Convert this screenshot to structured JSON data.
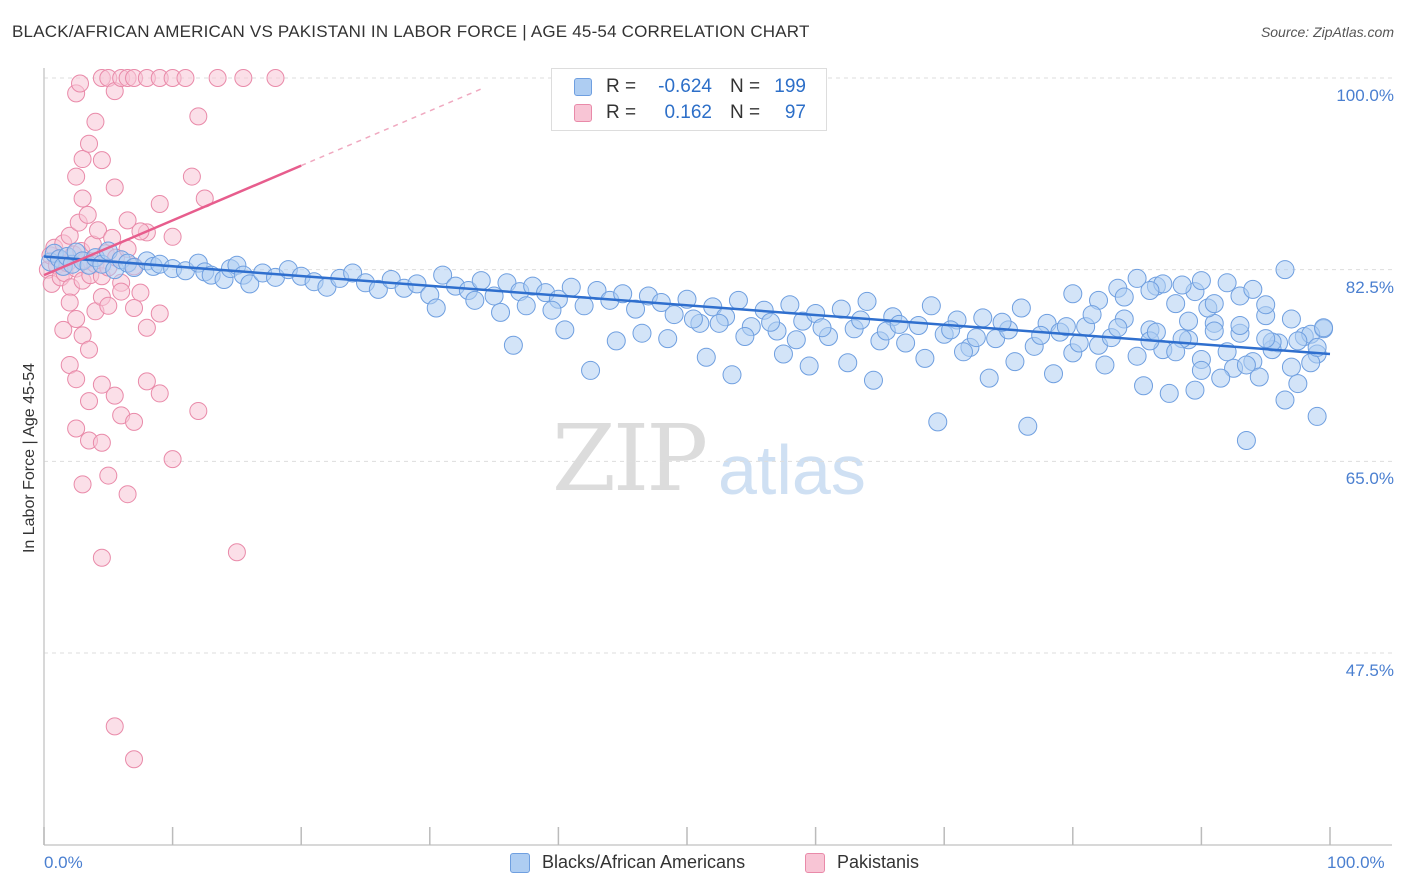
{
  "title": "BLACK/AFRICAN AMERICAN VS PAKISTANI IN LABOR FORCE | AGE 45-54 CORRELATION CHART",
  "source": "Source: ZipAtlas.com",
  "watermark": {
    "zip": "ZIP",
    "atlas": "atlas"
  },
  "legend": {
    "r_label": "R =",
    "n_label": "N =",
    "rows": [
      {
        "r": "-0.624",
        "n": "199",
        "fill": "#aecdf2",
        "stroke": "#6f9fe0"
      },
      {
        "r": "0.162",
        "n": "97",
        "fill": "#f8c5d5",
        "stroke": "#e98aa9"
      }
    ]
  },
  "colors": {
    "blue": "#2f6fce",
    "blue_fill": "#aecdf2",
    "pink": "#e75d8d",
    "pink_fill": "#f8c5d5",
    "grid": "#dddddd"
  },
  "chart_data": {
    "type": "scatter",
    "ylabel": "In Labor Force | Age 45-54",
    "xlim": [
      0,
      100
    ],
    "ylim": [
      32,
      102
    ],
    "x_ticks": [
      "0.0%",
      "100.0%"
    ],
    "y_ticks": [
      {
        "value": 100,
        "label": "100.0%"
      },
      {
        "value": 82.5,
        "label": "82.5%"
      },
      {
        "value": 65,
        "label": "65.0%"
      },
      {
        "value": 47.5,
        "label": "47.5%"
      }
    ],
    "grid": true,
    "legend_position": "bottom-center",
    "series": [
      {
        "name": "Blacks/African Americans",
        "trend": {
          "x0": 0,
          "y0": 83.7,
          "x1": 100,
          "y1": 74.8
        },
        "points": [
          [
            0.5,
            83.2
          ],
          [
            0.8,
            84.0
          ],
          [
            1.2,
            83.5
          ],
          [
            1.5,
            82.8
          ],
          [
            1.8,
            83.7
          ],
          [
            2.2,
            83.0
          ],
          [
            2.5,
            84.1
          ],
          [
            3.0,
            83.3
          ],
          [
            3.5,
            82.9
          ],
          [
            4.0,
            83.6
          ],
          [
            4.5,
            83.0
          ],
          [
            5.0,
            84.2
          ],
          [
            5.5,
            82.5
          ],
          [
            6.0,
            83.4
          ],
          [
            6.5,
            83.1
          ],
          [
            7.0,
            82.7
          ],
          [
            8.0,
            83.3
          ],
          [
            8.5,
            82.8
          ],
          [
            9.0,
            83.0
          ],
          [
            10.0,
            82.6
          ],
          [
            11.0,
            82.4
          ],
          [
            12.0,
            83.1
          ],
          [
            12.5,
            82.3
          ],
          [
            13.0,
            82.0
          ],
          [
            14.0,
            81.6
          ],
          [
            14.5,
            82.6
          ],
          [
            15.0,
            82.9
          ],
          [
            15.5,
            82.0
          ],
          [
            16.0,
            81.2
          ],
          [
            17.0,
            82.2
          ],
          [
            18.0,
            81.8
          ],
          [
            19.0,
            82.5
          ],
          [
            20.0,
            81.9
          ],
          [
            21.0,
            81.4
          ],
          [
            22.0,
            80.9
          ],
          [
            23.0,
            81.7
          ],
          [
            24.0,
            82.2
          ],
          [
            25.0,
            81.3
          ],
          [
            26.0,
            80.7
          ],
          [
            27.0,
            81.6
          ],
          [
            28.0,
            80.8
          ],
          [
            29.0,
            81.2
          ],
          [
            30.0,
            80.2
          ],
          [
            31.0,
            82.0
          ],
          [
            32.0,
            81.0
          ],
          [
            33.0,
            80.6
          ],
          [
            34.0,
            81.5
          ],
          [
            35.0,
            80.1
          ],
          [
            36.0,
            81.3
          ],
          [
            37.0,
            80.5
          ],
          [
            38.0,
            81.0
          ],
          [
            39.0,
            80.4
          ],
          [
            40.0,
            79.8
          ],
          [
            41.0,
            80.9
          ],
          [
            42.0,
            79.2
          ],
          [
            43.0,
            80.6
          ],
          [
            44.0,
            79.7
          ],
          [
            45.0,
            80.3
          ],
          [
            46.0,
            78.9
          ],
          [
            47.0,
            80.1
          ],
          [
            48.0,
            79.5
          ],
          [
            49.0,
            78.4
          ],
          [
            50.0,
            79.8
          ],
          [
            51.0,
            77.6
          ],
          [
            52.0,
            79.1
          ],
          [
            53.0,
            78.2
          ],
          [
            54.0,
            79.7
          ],
          [
            55.0,
            77.3
          ],
          [
            56.0,
            78.8
          ],
          [
            57.0,
            76.9
          ],
          [
            58.0,
            79.3
          ],
          [
            59.0,
            77.8
          ],
          [
            60.0,
            78.5
          ],
          [
            61.0,
            76.4
          ],
          [
            62.0,
            78.9
          ],
          [
            63.0,
            77.1
          ],
          [
            64.0,
            79.6
          ],
          [
            65.0,
            76.0
          ],
          [
            66.0,
            78.2
          ],
          [
            67.0,
            75.8
          ],
          [
            68.0,
            77.4
          ],
          [
            69.0,
            79.2
          ],
          [
            70.0,
            76.6
          ],
          [
            71.0,
            77.9
          ],
          [
            72.0,
            75.4
          ],
          [
            73.0,
            78.1
          ],
          [
            74.0,
            76.2
          ],
          [
            75.0,
            77.0
          ],
          [
            76.0,
            79.0
          ],
          [
            77.0,
            75.5
          ],
          [
            78.0,
            77.6
          ],
          [
            79.0,
            76.8
          ],
          [
            80.0,
            74.9
          ],
          [
            81.0,
            77.3
          ],
          [
            82.0,
            75.6
          ],
          [
            83.0,
            76.3
          ],
          [
            84.0,
            78.0
          ],
          [
            85.0,
            74.6
          ],
          [
            86.0,
            77.0
          ],
          [
            87.0,
            75.2
          ],
          [
            88.0,
            79.4
          ],
          [
            89.0,
            76.1
          ],
          [
            90.0,
            74.3
          ],
          [
            91.0,
            77.6
          ],
          [
            92.0,
            75.0
          ],
          [
            93.0,
            76.7
          ],
          [
            94.0,
            74.1
          ],
          [
            95.0,
            78.3
          ],
          [
            96.0,
            75.8
          ],
          [
            97.0,
            73.6
          ],
          [
            98.0,
            76.4
          ],
          [
            99.0,
            74.8
          ],
          [
            99.5,
            77.1
          ],
          [
            36.5,
            75.6
          ],
          [
            42.5,
            73.3
          ],
          [
            48.5,
            76.2
          ],
          [
            51.5,
            74.5
          ],
          [
            53.5,
            72.9
          ],
          [
            57.5,
            74.8
          ],
          [
            59.5,
            73.7
          ],
          [
            62.5,
            74.0
          ],
          [
            64.5,
            72.4
          ],
          [
            68.5,
            74.4
          ],
          [
            69.5,
            68.6
          ],
          [
            71.5,
            75.0
          ],
          [
            73.5,
            72.6
          ],
          [
            75.5,
            74.1
          ],
          [
            76.5,
            68.2
          ],
          [
            78.5,
            73.0
          ],
          [
            80.5,
            75.8
          ],
          [
            82.5,
            73.8
          ],
          [
            85.5,
            71.9
          ],
          [
            87.5,
            71.2
          ],
          [
            88.5,
            76.2
          ],
          [
            89.5,
            71.5
          ],
          [
            90.5,
            79.0
          ],
          [
            92.5,
            73.5
          ],
          [
            93.5,
            66.9
          ],
          [
            94.5,
            72.7
          ],
          [
            95.5,
            75.2
          ],
          [
            96.5,
            70.6
          ],
          [
            97.5,
            72.1
          ],
          [
            98.5,
            74.0
          ],
          [
            99.0,
            69.1
          ],
          [
            85.0,
            81.7
          ],
          [
            86.5,
            81.0
          ],
          [
            80.0,
            80.3
          ],
          [
            83.5,
            80.8
          ],
          [
            87.0,
            81.2
          ],
          [
            89.5,
            80.5
          ],
          [
            91.0,
            79.4
          ],
          [
            93.0,
            80.1
          ],
          [
            95.0,
            79.3
          ],
          [
            96.5,
            82.5
          ],
          [
            88.5,
            81.1
          ],
          [
            84.0,
            80.0
          ],
          [
            82.0,
            79.7
          ],
          [
            86.0,
            80.6
          ],
          [
            90.0,
            81.5
          ],
          [
            92.0,
            81.3
          ],
          [
            94.0,
            80.7
          ],
          [
            86.0,
            76.0
          ],
          [
            88.0,
            75.0
          ],
          [
            90.0,
            73.3
          ],
          [
            91.5,
            72.6
          ],
          [
            93.5,
            73.8
          ],
          [
            95.5,
            75.9
          ],
          [
            97.0,
            78.0
          ],
          [
            98.5,
            76.6
          ],
          [
            99.5,
            77.2
          ],
          [
            40.5,
            77.0
          ],
          [
            44.5,
            76.0
          ],
          [
            46.5,
            76.7
          ],
          [
            50.5,
            78.0
          ],
          [
            52.5,
            77.6
          ],
          [
            54.5,
            76.4
          ],
          [
            56.5,
            77.7
          ],
          [
            58.5,
            76.1
          ],
          [
            60.5,
            77.2
          ],
          [
            63.5,
            77.9
          ],
          [
            65.5,
            76.9
          ],
          [
            66.5,
            77.5
          ],
          [
            70.5,
            77.0
          ],
          [
            72.5,
            76.3
          ],
          [
            74.5,
            77.7
          ],
          [
            77.5,
            76.5
          ],
          [
            79.5,
            77.3
          ],
          [
            81.5,
            78.4
          ],
          [
            83.5,
            77.2
          ],
          [
            86.5,
            76.8
          ],
          [
            89.0,
            77.8
          ],
          [
            91.0,
            76.9
          ],
          [
            93.0,
            77.4
          ],
          [
            95.0,
            76.2
          ],
          [
            97.5,
            76.0
          ],
          [
            99.0,
            75.4
          ],
          [
            30.5,
            79.0
          ],
          [
            33.5,
            79.7
          ],
          [
            35.5,
            78.6
          ],
          [
            37.5,
            79.2
          ],
          [
            39.5,
            78.8
          ]
        ]
      },
      {
        "name": "Pakistanis",
        "trend": {
          "x0": 0,
          "y0": 82.0,
          "x1": 20,
          "y1": 92.0,
          "dash_x1": 34,
          "dash_y1": 99.0
        },
        "points": [
          [
            0.3,
            82.5
          ],
          [
            0.5,
            83.8
          ],
          [
            0.6,
            81.2
          ],
          [
            0.8,
            84.5
          ],
          [
            1.0,
            82.9
          ],
          [
            1.2,
            83.5
          ],
          [
            1.3,
            81.8
          ],
          [
            1.5,
            84.9
          ],
          [
            1.6,
            82.2
          ],
          [
            1.8,
            83.1
          ],
          [
            2.0,
            85.6
          ],
          [
            2.1,
            80.9
          ],
          [
            2.3,
            83.9
          ],
          [
            2.5,
            82.6
          ],
          [
            2.7,
            86.8
          ],
          [
            2.9,
            84.2
          ],
          [
            3.0,
            81.5
          ],
          [
            3.2,
            83.3
          ],
          [
            3.4,
            87.5
          ],
          [
            3.6,
            82.0
          ],
          [
            3.8,
            84.8
          ],
          [
            4.0,
            83.0
          ],
          [
            4.2,
            86.1
          ],
          [
            4.5,
            81.9
          ],
          [
            4.8,
            84.0
          ],
          [
            5.0,
            82.7
          ],
          [
            5.3,
            85.4
          ],
          [
            5.6,
            83.6
          ],
          [
            6.0,
            81.3
          ],
          [
            6.5,
            84.4
          ],
          [
            7.0,
            82.8
          ],
          [
            7.5,
            80.4
          ],
          [
            8.0,
            85.9
          ],
          [
            2.5,
            98.6
          ],
          [
            2.8,
            99.5
          ],
          [
            3.0,
            92.6
          ],
          [
            3.5,
            94.0
          ],
          [
            4.0,
            96.0
          ],
          [
            4.5,
            100.0
          ],
          [
            5.0,
            100.0
          ],
          [
            5.5,
            98.8
          ],
          [
            6.0,
            100.0
          ],
          [
            6.5,
            100.0
          ],
          [
            7.0,
            100.0
          ],
          [
            8.0,
            100.0
          ],
          [
            9.0,
            100.0
          ],
          [
            10.0,
            100.0
          ],
          [
            11.0,
            100.0
          ],
          [
            12.0,
            96.5
          ],
          [
            13.5,
            100.0
          ],
          [
            15.5,
            100.0
          ],
          [
            18.0,
            100.0
          ],
          [
            2.5,
            91.0
          ],
          [
            3.0,
            89.0
          ],
          [
            4.5,
            92.5
          ],
          [
            5.5,
            90.0
          ],
          [
            6.5,
            87.0
          ],
          [
            7.5,
            86.0
          ],
          [
            9.0,
            88.5
          ],
          [
            10.0,
            85.5
          ],
          [
            11.5,
            91.0
          ],
          [
            12.5,
            89.0
          ],
          [
            2.0,
            79.5
          ],
          [
            2.5,
            78.0
          ],
          [
            3.0,
            76.5
          ],
          [
            3.5,
            75.2
          ],
          [
            4.0,
            78.7
          ],
          [
            4.5,
            80.0
          ],
          [
            5.0,
            79.2
          ],
          [
            6.0,
            80.5
          ],
          [
            7.0,
            79.0
          ],
          [
            8.0,
            77.2
          ],
          [
            9.0,
            78.5
          ],
          [
            1.5,
            77.0
          ],
          [
            2.0,
            73.8
          ],
          [
            2.5,
            72.5
          ],
          [
            3.5,
            70.5
          ],
          [
            4.5,
            72.0
          ],
          [
            5.5,
            71.0
          ],
          [
            6.0,
            69.2
          ],
          [
            7.0,
            68.6
          ],
          [
            8.0,
            72.3
          ],
          [
            9.0,
            71.2
          ],
          [
            2.5,
            68.0
          ],
          [
            3.5,
            66.9
          ],
          [
            4.5,
            66.7
          ],
          [
            5.0,
            63.7
          ],
          [
            6.5,
            62.0
          ],
          [
            10.0,
            65.2
          ],
          [
            12.0,
            69.6
          ],
          [
            15.0,
            56.7
          ],
          [
            4.5,
            56.2
          ],
          [
            5.5,
            40.8
          ],
          [
            7.0,
            37.8
          ],
          [
            3.0,
            62.9
          ]
        ]
      }
    ]
  }
}
